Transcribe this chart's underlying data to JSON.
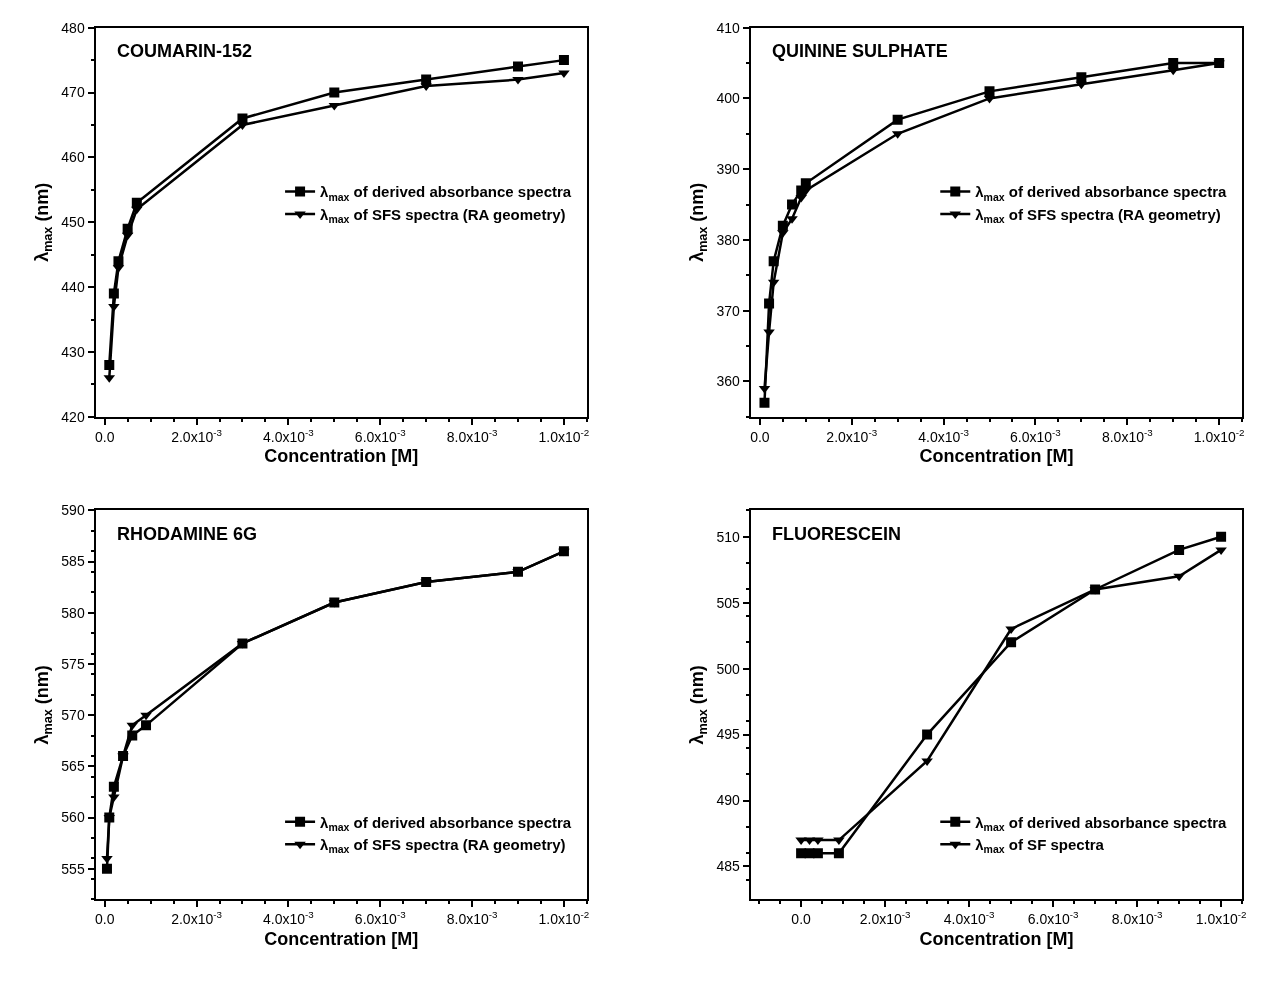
{
  "chart_data": [
    {
      "type": "line",
      "title": "COUMARIN-152",
      "xlabel": "Concentration [M]",
      "ylabel": "λ$_{max}$ (nm)",
      "legend": "right",
      "xlim": [
        -0.0002,
        0.0105
      ],
      "xticks": [
        {
          "value": 0,
          "label": "0.0"
        },
        {
          "value": 0.002,
          "label": "2.0x10$^{-3}$"
        },
        {
          "value": 0.004,
          "label": "4.0x10$^{-3}$"
        },
        {
          "value": 0.006,
          "label": "6.0x10$^{-3}$"
        },
        {
          "value": 0.008,
          "label": "8.0x10$^{-3}$"
        },
        {
          "value": 0.01,
          "label": "1.0x10$^{-2}$"
        }
      ],
      "ylim": [
        420,
        480
      ],
      "yticks": [
        420,
        430,
        440,
        450,
        460,
        470,
        480
      ],
      "x": [
        0.0001,
        0.0002,
        0.0003,
        0.0005,
        0.0007,
        0.003,
        0.005,
        0.007,
        0.009,
        0.01
      ],
      "series": [
        {
          "name": "λ$_{max}$ of derived absorbance spectra",
          "color": "#000000",
          "marker": "square",
          "values": [
            428,
            439,
            444,
            449,
            453,
            466,
            470,
            472,
            474,
            475
          ]
        },
        {
          "name": "λ$_{max}$ of SFS spectra (RA geometry)",
          "color": "#000000",
          "marker": "triangle",
          "values": [
            426,
            437,
            443,
            448,
            452,
            465,
            468,
            471,
            472,
            473
          ]
        }
      ]
    },
    {
      "type": "line",
      "title": "QUININE SULPHATE",
      "xlabel": "Concentration [M]",
      "ylabel": "λ$_{max}$ (nm)",
      "legend": "right",
      "xlim": [
        -0.0002,
        0.0105
      ],
      "xticks": [
        {
          "value": 0,
          "label": "0.0"
        },
        {
          "value": 0.002,
          "label": "2.0x10$^{-3}$"
        },
        {
          "value": 0.004,
          "label": "4.0x10$^{-3}$"
        },
        {
          "value": 0.006,
          "label": "6.0x10$^{-3}$"
        },
        {
          "value": 0.008,
          "label": "8.0x10$^{-3}$"
        },
        {
          "value": 0.01,
          "label": "1.0x10$^{-2}$"
        }
      ],
      "ylim": [
        355,
        410
      ],
      "yticks": [
        360,
        370,
        380,
        390,
        400,
        410
      ],
      "x": [
        0.0001,
        0.0002,
        0.0003,
        0.0005,
        0.0007,
        0.0009,
        0.001,
        0.003,
        0.005,
        0.007,
        0.009,
        0.01
      ],
      "series": [
        {
          "name": "λ$_{max}$ of derived absorbance spectra",
          "color": "#000000",
          "marker": "square",
          "values": [
            357,
            371,
            377,
            382,
            385,
            387,
            388,
            397,
            401,
            403,
            405,
            405
          ]
        },
        {
          "name": "λ$_{max}$ of SFS spectra (RA geometry)",
          "color": "#000000",
          "marker": "triangle",
          "values": [
            359,
            367,
            374,
            381,
            383,
            386,
            387,
            395,
            400,
            402,
            404,
            405
          ]
        }
      ]
    },
    {
      "type": "line",
      "title": "RHODAMINE 6G",
      "xlabel": "Concentration [M]",
      "ylabel": "λ$_{max}$ (nm)",
      "legend": "bottom right",
      "xlim": [
        -0.0002,
        0.0105
      ],
      "xticks": [
        {
          "value": 0,
          "label": "0.0"
        },
        {
          "value": 0.002,
          "label": "2.0x10$^{-3}$"
        },
        {
          "value": 0.004,
          "label": "4.0x10$^{-3}$"
        },
        {
          "value": 0.006,
          "label": "6.0x10$^{-3}$"
        },
        {
          "value": 0.008,
          "label": "8.0x10$^{-3}$"
        },
        {
          "value": 0.01,
          "label": "1.0x10$^{-2}$"
        }
      ],
      "ylim": [
        552,
        590
      ],
      "yticks": [
        555,
        560,
        565,
        570,
        575,
        580,
        585,
        590
      ],
      "x": [
        5e-05,
        0.0001,
        0.0002,
        0.0004,
        0.0006,
        0.0009,
        0.003,
        0.005,
        0.007,
        0.009,
        0.01
      ],
      "series": [
        {
          "name": "λ$_{max}$ of derived absorbance spectra",
          "color": "#000000",
          "marker": "square",
          "values": [
            555,
            560,
            563,
            566,
            568,
            569,
            577,
            581,
            583,
            584,
            586
          ]
        },
        {
          "name": "λ$_{max}$ of SFS spectra (RA geometry)",
          "color": "#000000",
          "marker": "triangle",
          "values": [
            556,
            560,
            562,
            566,
            569,
            570,
            577,
            581,
            583,
            584,
            586
          ]
        }
      ]
    },
    {
      "type": "line",
      "title": "FLUORESCEIN",
      "xlabel": "Concentration [M]",
      "ylabel": "λ$_{max}$ (nm)",
      "legend": "bottom right",
      "xlim": [
        -0.0012,
        0.0105
      ],
      "xticks": [
        {
          "value": 0,
          "label": "0.0"
        },
        {
          "value": 0.002,
          "label": "2.0x10$^{-3}$"
        },
        {
          "value": 0.004,
          "label": "4.0x10$^{-3}$"
        },
        {
          "value": 0.006,
          "label": "6.0x10$^{-3}$"
        },
        {
          "value": 0.008,
          "label": "8.0x10$^{-3}$"
        },
        {
          "value": 0.01,
          "label": "1.0x10$^{-2}$"
        }
      ],
      "ylim": [
        482.5,
        512
      ],
      "yticks": [
        485,
        490,
        495,
        500,
        505,
        510
      ],
      "x": [
        0.0,
        0.0002,
        0.0004,
        0.0009,
        0.003,
        0.005,
        0.007,
        0.009,
        0.01
      ],
      "series": [
        {
          "name": "λ$_{max}$ of derived absorbance spectra",
          "color": "#000000",
          "marker": "square",
          "values": [
            486,
            486,
            486,
            486,
            495,
            502,
            506,
            509,
            510
          ]
        },
        {
          "name": "λ$_{max}$ of SF spectra",
          "color": "#000000",
          "marker": "triangle",
          "values": [
            487,
            487,
            487,
            487,
            493,
            503,
            506,
            507,
            509
          ]
        }
      ]
    }
  ]
}
